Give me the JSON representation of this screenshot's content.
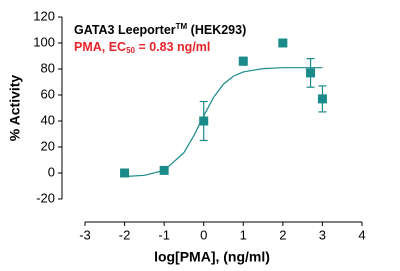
{
  "chart_data": {
    "type": "scatter",
    "title": {
      "main": "GATA3 Leeporter",
      "sup": "TM",
      "rest": " (HEK293)"
    },
    "subtitle": {
      "main": "PMA, EC",
      "sub": "50",
      "rest": " = 0.83 ng/ml"
    },
    "x_label": "log[PMA], (ng/ml)",
    "y_label": "% Activity",
    "series": [
      {
        "name": "PMA",
        "color": "#1b8a8a",
        "x": [
          -2,
          -1,
          0,
          1,
          2,
          2.7,
          3
        ],
        "values": [
          0,
          2,
          40,
          86,
          100,
          77,
          57
        ],
        "errors": [
          1,
          1,
          15,
          3,
          1,
          11,
          10
        ]
      },
      {
        "name": "fit",
        "color": "#1b8a8a",
        "x": [
          -2,
          -1.5,
          -1,
          -0.5,
          -0.25,
          0,
          0.25,
          0.5,
          0.75,
          1,
          1.5,
          2,
          2.5,
          3
        ],
        "values": [
          -2.7,
          -1.8,
          2,
          15.6,
          28.6,
          44,
          58.2,
          68.4,
          74.5,
          77.8,
          80.3,
          81,
          81,
          81
        ]
      }
    ],
    "xlim": [
      -3,
      4
    ],
    "xticks": [
      -3,
      -2,
      -1,
      0,
      1,
      2,
      3,
      4
    ],
    "ylim": [
      -20,
      120
    ],
    "yticks": [
      -20,
      0,
      20,
      40,
      60,
      80,
      100,
      120
    ]
  }
}
